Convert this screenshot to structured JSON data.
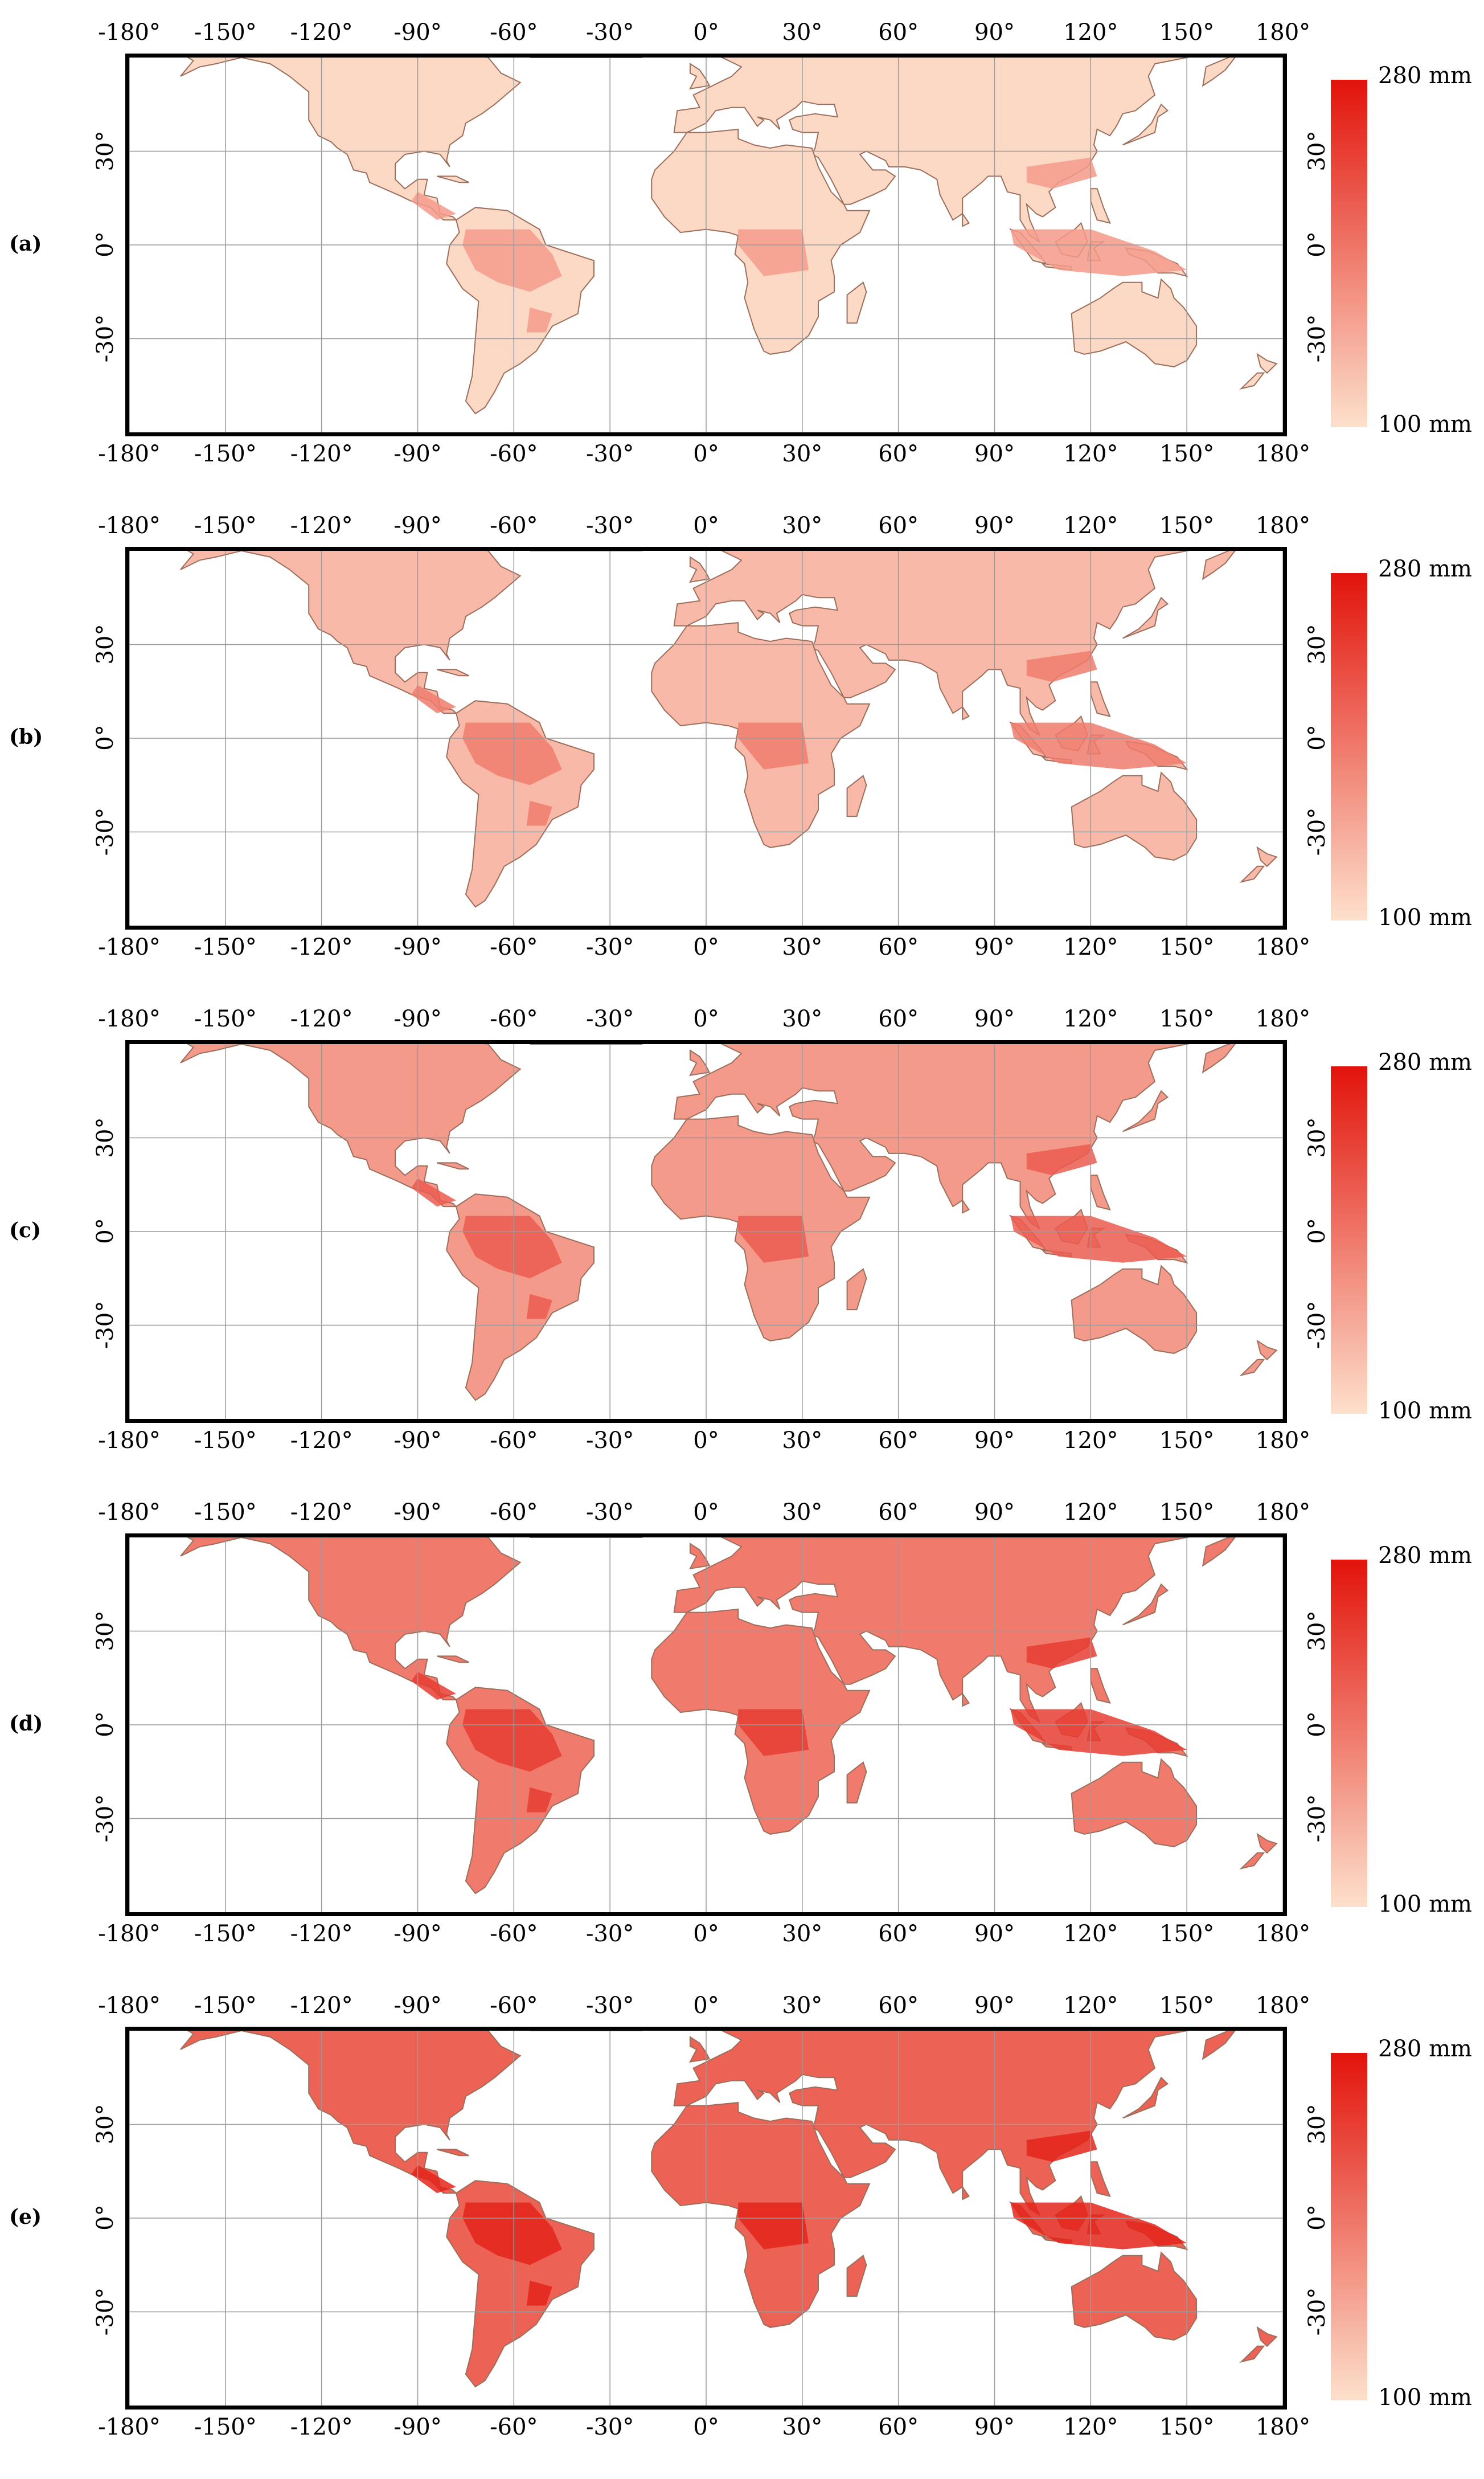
{
  "panels": [
    {
      "label": "(a)",
      "intensity": 0.05
    },
    {
      "label": "(b)",
      "intensity": 0.2
    },
    {
      "label": "(c)",
      "intensity": 0.35
    },
    {
      "label": "(d)",
      "intensity": 0.5
    },
    {
      "label": "(e)",
      "intensity": 0.62
    }
  ],
  "axes": {
    "x_ticks": [
      "-180°",
      "-150°",
      "-120°",
      "-90°",
      "-60°",
      "-30°",
      "0°",
      "30°",
      "60°",
      "90°",
      "120°",
      "150°",
      "180°"
    ],
    "x_values": [
      -180,
      -150,
      -120,
      -90,
      -60,
      -30,
      0,
      30,
      60,
      90,
      120,
      150,
      180
    ],
    "y_ticks": [
      "30°",
      "0°",
      "-30°"
    ],
    "y_values": [
      30,
      0,
      -30
    ],
    "lat_range": [
      -60,
      60
    ],
    "lon_range": [
      -180,
      180
    ]
  },
  "colorbar": {
    "max_label": "280 mm",
    "min_label": "100 mm",
    "max_value": 280,
    "min_value": 100,
    "color_max": "#e2130b",
    "color_min": "#fde0cc"
  },
  "colors": {
    "land_low": "#fde3cf",
    "land_high": "#e2130b",
    "coast": "#9c6e5c",
    "grid": "#9a9a9a"
  }
}
